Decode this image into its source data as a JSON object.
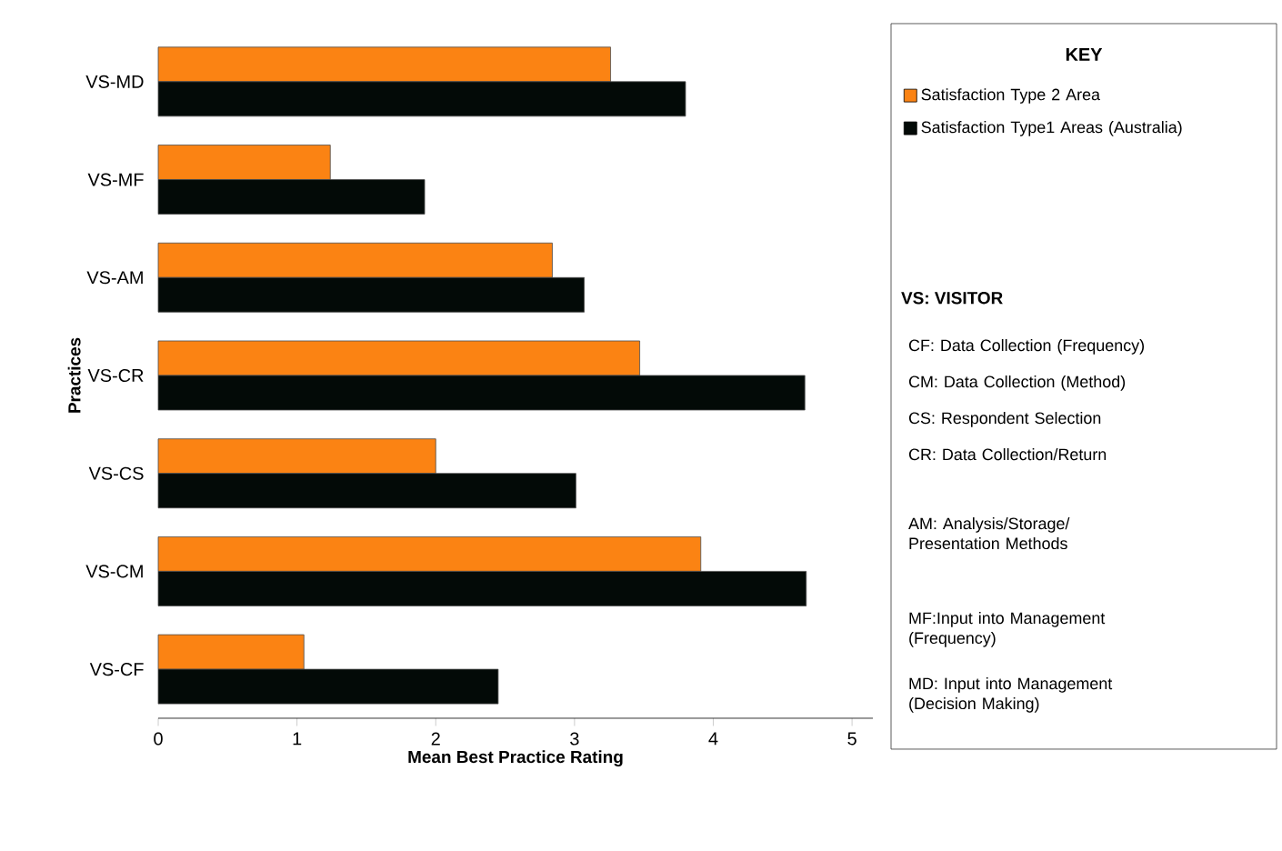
{
  "chart_data": {
    "type": "bar",
    "orientation": "horizontal",
    "xlabel": "Mean Best Practice Rating",
    "ylabel": "Practices",
    "categories": [
      "VS-MD",
      "VS-MF",
      "VS-AM",
      "VS-CR",
      "VS-CS",
      "VS-CM",
      "VS-CF"
    ],
    "series": [
      {
        "name": "Satisfaction Type 2 Area",
        "color": "#fb8313",
        "values": [
          3.26,
          1.24,
          2.84,
          3.47,
          2.0,
          3.91,
          1.05
        ]
      },
      {
        "name": "Satisfaction Type1 Areas (Australia)",
        "color": "#030a07",
        "values": [
          3.8,
          1.92,
          3.07,
          4.66,
          3.01,
          4.67,
          2.45
        ]
      }
    ],
    "xlim": [
      0,
      5.15
    ],
    "xticks": [
      0,
      1,
      2,
      3,
      4,
      5
    ],
    "legend": "right",
    "legend_title": "KEY",
    "annotations": [
      "VS: VISITOR",
      "CF: Data Collection (Frequency)",
      "CM: Data Collection (Method)",
      "CS: Respondent Selection",
      "CR: Data Collection/Return",
      "AM: Analysis/Storage/ Presentation Methods",
      "MF:Input into Management (Frequency)",
      "MD: Input into Management (Decision Making)"
    ]
  }
}
